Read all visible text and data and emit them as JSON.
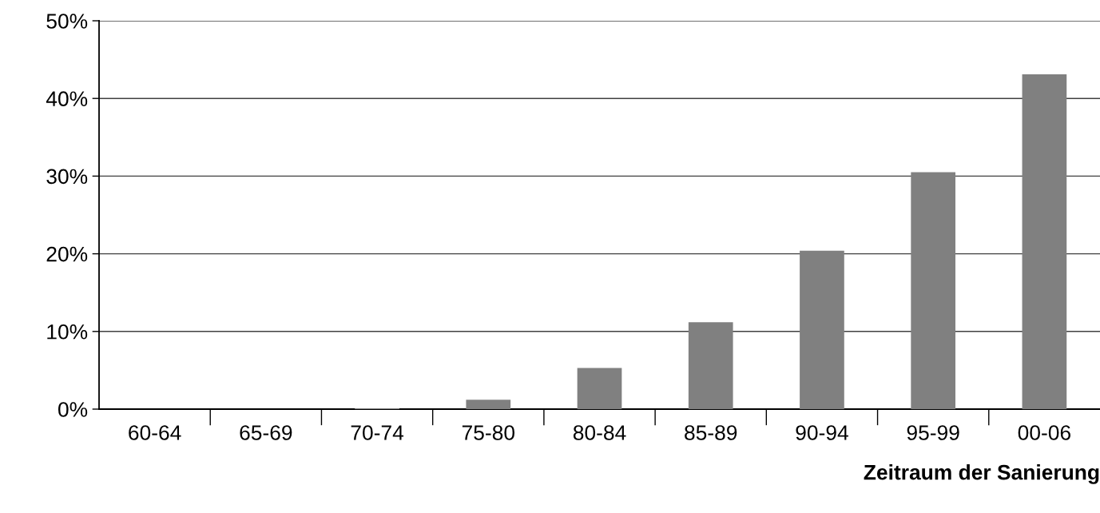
{
  "chart_data": {
    "type": "bar",
    "xlabel": "Zeitraum der Sanierung",
    "categories": [
      "60-64",
      "65-69",
      "70-74",
      "75-80",
      "80-84",
      "85-89",
      "90-94",
      "95-99",
      "00-06"
    ],
    "values": [
      0,
      0,
      0.1,
      1.2,
      5.3,
      11.2,
      20.4,
      30.5,
      43.1
    ],
    "color": "#808080",
    "ylim": [
      0,
      50
    ],
    "yticks": [
      {
        "value": 0,
        "label": "0%"
      },
      {
        "value": 10,
        "label": "10%"
      },
      {
        "value": 20,
        "label": "20%"
      },
      {
        "value": 30,
        "label": "30%"
      },
      {
        "value": 40,
        "label": "40%"
      },
      {
        "value": 50,
        "label": "50%"
      }
    ],
    "grid": "y",
    "legend": false
  }
}
